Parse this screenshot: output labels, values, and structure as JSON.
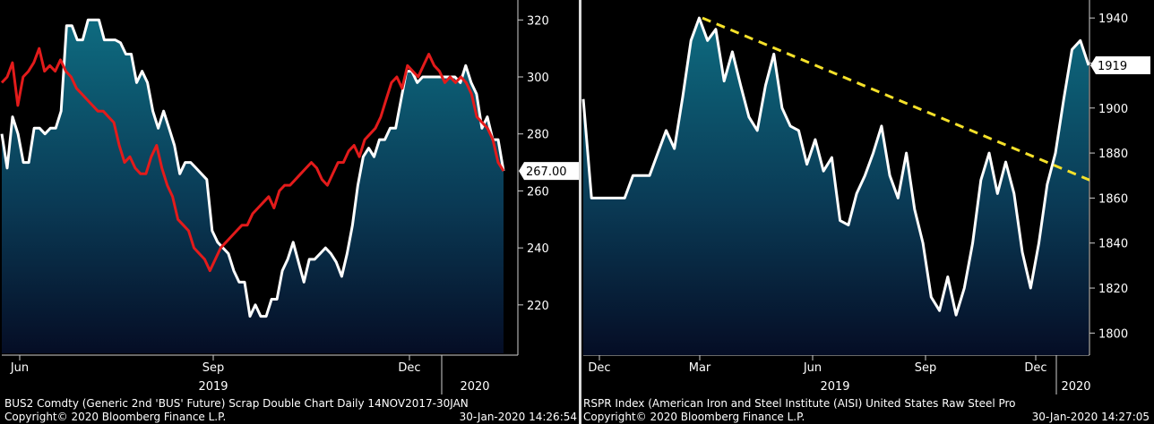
{
  "chart_data": [
    {
      "type": "line",
      "ylim": [
        203,
        327
      ],
      "x_ticks": [
        "Jun",
        "Sep",
        "Dec"
      ],
      "year_labels": [
        "2019",
        "2020"
      ],
      "y_ticks": [
        220,
        240,
        260,
        280,
        300,
        320
      ],
      "last_value_label": "267.00",
      "series": [
        {
          "color": "#ffffff",
          "fill": true,
          "values": [
            280,
            268,
            286,
            280,
            270,
            270,
            282,
            282,
            280,
            282,
            282,
            288,
            318,
            318,
            313,
            313,
            320,
            320,
            320,
            313,
            313,
            313,
            312,
            308,
            308,
            298,
            302,
            298,
            288,
            282,
            288,
            282,
            276,
            266,
            270,
            270,
            268,
            266,
            264,
            246,
            242,
            240,
            238,
            232,
            228,
            228,
            216,
            220,
            216,
            216,
            222,
            222,
            232,
            236,
            242,
            235,
            228,
            236,
            236,
            238,
            240,
            238,
            235,
            230,
            238,
            248,
            262,
            272,
            275,
            272,
            278,
            278,
            282,
            282,
            292,
            302,
            302,
            298,
            300,
            300,
            300,
            300,
            300,
            300,
            300,
            298,
            304,
            298,
            294,
            282,
            286,
            278,
            278,
            267
          ]
        },
        {
          "color": "#e31b1b",
          "fill": false,
          "values": [
            298,
            300,
            305,
            290,
            300,
            302,
            305,
            310,
            302,
            304,
            302,
            306,
            302,
            300,
            296,
            294,
            292,
            290,
            288,
            288,
            286,
            284,
            276,
            270,
            272,
            268,
            266,
            266,
            272,
            276,
            268,
            262,
            258,
            250,
            248,
            246,
            240,
            238,
            236,
            232,
            236,
            240,
            242,
            244,
            246,
            248,
            248,
            252,
            254,
            256,
            258,
            254,
            260,
            262,
            262,
            264,
            266,
            268,
            270,
            268,
            264,
            262,
            266,
            270,
            270,
            274,
            276,
            272,
            278,
            280,
            282,
            286,
            292,
            298,
            300,
            296,
            304,
            302,
            300,
            304,
            308,
            304,
            302,
            298,
            300,
            298,
            300,
            298,
            294,
            286,
            284,
            282,
            278,
            270,
            267
          ]
        }
      ]
    },
    {
      "type": "line",
      "ylim": [
        1791,
        1948
      ],
      "x_ticks": [
        "Dec",
        "Mar",
        "Jun",
        "Sep",
        "Dec"
      ],
      "year_labels": [
        "2019",
        "2020"
      ],
      "y_ticks": [
        1800,
        1820,
        1840,
        1860,
        1880,
        1900,
        1920,
        1940
      ],
      "last_value_label": "1919",
      "series": [
        {
          "color": "#ffffff",
          "fill": true,
          "values": [
            1904,
            1860,
            1860,
            1860,
            1860,
            1860,
            1870,
            1870,
            1870,
            1880,
            1890,
            1882,
            1905,
            1930,
            1940,
            1930,
            1935,
            1912,
            1925,
            1910,
            1896,
            1890,
            1910,
            1924,
            1900,
            1892,
            1890,
            1875,
            1886,
            1872,
            1878,
            1850,
            1848,
            1862,
            1870,
            1880,
            1892,
            1870,
            1860,
            1880,
            1855,
            1840,
            1816,
            1810,
            1825,
            1808,
            1820,
            1840,
            1868,
            1880,
            1862,
            1876,
            1862,
            1836,
            1820,
            1840,
            1866,
            1880,
            1904,
            1926,
            1930,
            1919
          ]
        },
        {
          "color": "#f5e12a",
          "fill": false,
          "dashed": true,
          "label": "",
          "values_range": [
            1940,
            1868
          ]
        }
      ]
    }
  ],
  "footer": {
    "left_title": "BUS2 Comdty (Generic 2nd 'BUS' Future) Scrap Double Chart  Daily 14NOV2017-30JAN",
    "left_copyright": "Copyright© 2020 Bloomberg Finance L.P.",
    "left_timestamp": "30-Jan-2020 14:26:54",
    "right_title": "RSPR Index (American Iron and Steel Institute (AISI) United States Raw Steel Pro",
    "right_copyright": "Copyright© 2020 Bloomberg Finance L.P.",
    "right_timestamp": "30-Jan-2020 14:27:05"
  }
}
